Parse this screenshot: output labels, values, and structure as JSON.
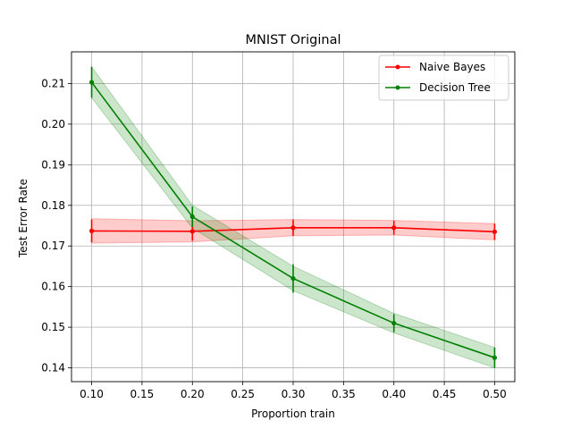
{
  "chart_data": {
    "type": "line",
    "title": "MNIST Original",
    "xlabel": "Proportion train",
    "ylabel": "Test Error Rate",
    "x": [
      0.1,
      0.2,
      0.3,
      0.4,
      0.5
    ],
    "xlim": [
      0.08,
      0.52
    ],
    "ylim": [
      0.1366,
      0.2178
    ],
    "xticks": [
      0.1,
      0.15,
      0.2,
      0.25,
      0.3,
      0.35,
      0.4,
      0.45,
      0.5
    ],
    "xtick_labels": [
      "0.10",
      "0.15",
      "0.20",
      "0.25",
      "0.30",
      "0.35",
      "0.40",
      "0.45",
      "0.50"
    ],
    "yticks": [
      0.14,
      0.15,
      0.16,
      0.17,
      0.18,
      0.19,
      0.2,
      0.21
    ],
    "ytick_labels": [
      "0.14",
      "0.15",
      "0.16",
      "0.17",
      "0.18",
      "0.19",
      "0.20",
      "0.21"
    ],
    "grid": true,
    "legend_position": "top-right",
    "series": [
      {
        "name": "Naive Bayes",
        "color": "#ff0000",
        "fill_color": "#ff0000",
        "values": [
          0.1737,
          0.1736,
          0.1745,
          0.1745,
          0.1735
        ],
        "error": [
          0.0028,
          0.0023,
          0.002,
          0.0017,
          0.002
        ],
        "band": [
          0.003,
          0.0026,
          0.002,
          0.0018,
          0.002
        ]
      },
      {
        "name": "Decision Tree",
        "color": "#008000",
        "fill_color": "#008000",
        "values": [
          0.2103,
          0.1772,
          0.162,
          0.151,
          0.1425
        ],
        "error": [
          0.0038,
          0.0025,
          0.0035,
          0.0022,
          0.0025
        ],
        "band": [
          0.0038,
          0.0028,
          0.003,
          0.0024,
          0.0025
        ]
      }
    ]
  }
}
